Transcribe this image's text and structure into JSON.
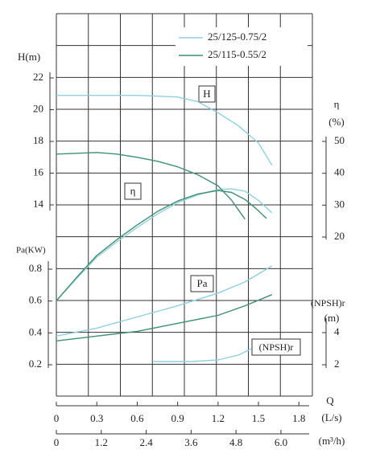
{
  "chart_data": {
    "type": "line",
    "x_label": "Q",
    "x_unit": "(L/s)",
    "xlim": [
      0,
      1.9
    ],
    "xticks": [
      0,
      0.3,
      0.6,
      0.9,
      1.2,
      1.5,
      1.8
    ],
    "x2_unit": "(m³/h)",
    "x2lim": [
      0,
      6.84
    ],
    "x2ticks": [
      0,
      1.2,
      2.4,
      3.6,
      4.8,
      {
        "value": 6,
        "label": "6.0"
      }
    ],
    "grid": true,
    "legend": "top-right",
    "axes": {
      "H": {
        "label": "H(m)",
        "ylim": [
          14,
          22
        ],
        "yticks": [
          14,
          16,
          18,
          20,
          22
        ]
      },
      "eta": {
        "label": "η",
        "unit": "(%)",
        "ylim": [
          20,
          50
        ],
        "yticks": [
          20,
          30,
          40,
          50
        ]
      },
      "Pa": {
        "label": "Pa(KW)",
        "ylim": [
          0.2,
          0.8
        ],
        "yticks": [
          0.2,
          0.4,
          0.6,
          0.8
        ]
      },
      "NPSH": {
        "label": "(NPSH)r",
        "unit": "(m)",
        "ylim": [
          2,
          4
        ],
        "yticks": [
          2,
          4
        ]
      }
    },
    "curve_labels": {
      "H": "H",
      "eta": "η",
      "Pa": "Pa",
      "NPSH": "(NPSH)r"
    },
    "series": [
      {
        "name": "25/125-0.75/2",
        "color": "#8fd0e0",
        "H": {
          "x": [
            0,
            0.3,
            0.6,
            0.9,
            1.05,
            1.2,
            1.35,
            1.5,
            1.6
          ],
          "values": [
            20.9,
            20.9,
            20.9,
            20.8,
            20.5,
            19.8,
            19.0,
            17.9,
            16.5
          ]
        },
        "eta": {
          "x": [
            0,
            0.15,
            0.3,
            0.45,
            0.6,
            0.75,
            0.9,
            1.05,
            1.2,
            1.3,
            1.4,
            1.5,
            1.6
          ],
          "values": [
            0,
            7,
            13.7,
            18.5,
            23,
            27.2,
            30.8,
            33.2,
            34.9,
            35.1,
            34.4,
            31.5,
            27.6
          ]
        },
        "Pa": {
          "x": [
            0,
            0.3,
            0.6,
            0.9,
            1.2,
            1.4,
            1.6
          ],
          "values": [
            0.38,
            0.43,
            0.5,
            0.57,
            0.65,
            0.72,
            0.82
          ]
        },
        "NPSH": {
          "x": [
            0.72,
            1.0,
            1.2,
            1.35,
            1.45
          ],
          "values": [
            2.2,
            2.2,
            2.3,
            2.6,
            3.0
          ]
        }
      },
      {
        "name": "25/115-0.55/2",
        "color": "#3f8f72",
        "H": {
          "x": [
            0,
            0.15,
            0.3,
            0.45,
            0.6,
            0.75,
            0.9,
            1.05,
            1.2,
            1.3,
            1.4
          ],
          "values": [
            17.2,
            17.25,
            17.3,
            17.2,
            17.0,
            16.75,
            16.4,
            15.9,
            15.2,
            14.3,
            13.1
          ]
        },
        "eta": {
          "x": [
            0,
            0.15,
            0.3,
            0.45,
            0.6,
            0.75,
            0.9,
            1.05,
            1.2,
            1.3,
            1.4,
            1.48,
            1.56
          ],
          "values": [
            0,
            7.3,
            14.2,
            19.2,
            23.8,
            28,
            31.3,
            33.5,
            34.6,
            34,
            31.8,
            29,
            25.8
          ]
        },
        "Pa": {
          "x": [
            0,
            0.3,
            0.6,
            0.9,
            1.2,
            1.4,
            1.6
          ],
          "values": [
            0.35,
            0.38,
            0.41,
            0.46,
            0.51,
            0.57,
            0.64
          ]
        }
      }
    ]
  }
}
